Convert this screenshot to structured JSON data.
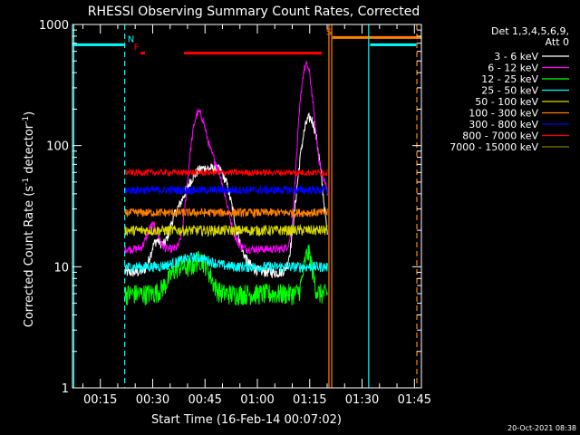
{
  "chart_data": {
    "type": "line",
    "title": "RHESSI Observing Summary Count Rates, Corrected",
    "xlabel": "Start Time (16-Feb-14 00:07:02)",
    "ylabel": "Corrected Count Rate (s⁻¹ detector⁻¹)",
    "ylabel_parts": {
      "main": "Corrected Count Rate (s",
      "sup1": "-1",
      "mid": " detector",
      "sup2": "-1",
      "end": ")"
    },
    "y_scale": "log",
    "ylim": [
      1,
      1000
    ],
    "xlim_minutes": [
      7.03,
      107.0
    ],
    "x_ticks": [
      {
        "label": "00:15",
        "min": 15
      },
      {
        "label": "00:30",
        "min": 30
      },
      {
        "label": "00:45",
        "min": 45
      },
      {
        "label": "01:00",
        "min": 60
      },
      {
        "label": "01:15",
        "min": 75
      },
      {
        "label": "01:30",
        "min": 90
      },
      {
        "label": "01:45",
        "min": 105
      }
    ],
    "y_ticks": [
      {
        "label": "1",
        "value": 1
      },
      {
        "label": "10",
        "value": 10
      },
      {
        "label": "100",
        "value": 100
      },
      {
        "label": "1000",
        "value": 1000
      }
    ],
    "legend": {
      "placement": "right",
      "header": [
        "Det 1,3,4,5,6,9,",
        "Att 0"
      ]
    },
    "series": [
      {
        "name": "3 - 6 keV",
        "color": "#ffffff",
        "base": 9,
        "noise": 0.05,
        "bumps": [
          [
            44.5,
            7,
            55
          ],
          [
            50,
            3,
            20
          ],
          [
            75,
            3,
            160
          ],
          [
            31,
            2,
            6
          ],
          [
            36,
            2,
            4
          ]
        ]
      },
      {
        "name": "6 - 12 keV",
        "color": "#ff00ff",
        "base": 14,
        "noise": 0.04,
        "bumps": [
          [
            43,
            2.5,
            150
          ],
          [
            47,
            4,
            60
          ],
          [
            74,
            2,
            420
          ],
          [
            77,
            4,
            50
          ],
          [
            30,
            2,
            8
          ]
        ]
      },
      {
        "name": "12 - 25 keV",
        "color": "#00ff00",
        "base": 6,
        "noise": 0.1,
        "bumps": [
          [
            38,
            4,
            4
          ],
          [
            44,
            3,
            5
          ],
          [
            74.5,
            1.5,
            7
          ]
        ]
      },
      {
        "name": "25 - 50 keV",
        "color": "#00ffff",
        "base": 10,
        "noise": 0.05,
        "bumps": [
          [
            42,
            6,
            2
          ]
        ]
      },
      {
        "name": "50 - 100 keV",
        "color": "#d8d800",
        "base": 20,
        "noise": 0.05,
        "bumps": []
      },
      {
        "name": "100 - 300 keV",
        "color": "#ff8000",
        "base": 28,
        "noise": 0.04,
        "bumps": []
      },
      {
        "name": "300 - 800 keV",
        "color": "#0000ff",
        "base": 43,
        "noise": 0.04,
        "bumps": []
      },
      {
        "name": "800 - 7000 keV",
        "color": "#ff0000",
        "base": 60,
        "noise": 0.03,
        "bumps": []
      },
      {
        "name": "7000 - 15000 keV",
        "color": "#808000",
        "base": 0,
        "noise": 0,
        "bumps": []
      }
    ],
    "data_window_minutes": [
      22.0,
      80.2
    ],
    "flags": [
      {
        "label": "N",
        "color": "#00ffff",
        "level": 680,
        "segments": [
          [
            7.03,
            21.8
          ],
          [
            92.3,
            105.5
          ]
        ]
      },
      {
        "label": "F",
        "color": "#ff0000",
        "level": 580,
        "segments": [
          [
            26.5,
            27.8
          ],
          [
            39,
            78.5
          ]
        ]
      },
      {
        "label": "S",
        "color": "#ff8000",
        "level": 780,
        "segments": [
          [
            81.5,
            107.0
          ]
        ]
      }
    ],
    "vlines": [
      {
        "min": 22.0,
        "color": "#00ffff",
        "dashed": true
      },
      {
        "min": 80.5,
        "color": "#ff8000",
        "dashed": false
      },
      {
        "min": 81.3,
        "color": "#ff8000",
        "dashed": false
      },
      {
        "min": 91.9,
        "color": "#00ffff",
        "dashed": false
      },
      {
        "min": 105.7,
        "color": "#ff8000",
        "dashed": true
      },
      {
        "min": 7.4,
        "color": "#00ffff",
        "dashed": false
      }
    ]
  },
  "footer": {
    "timestamp": "20-Oct-2021 08:38"
  }
}
